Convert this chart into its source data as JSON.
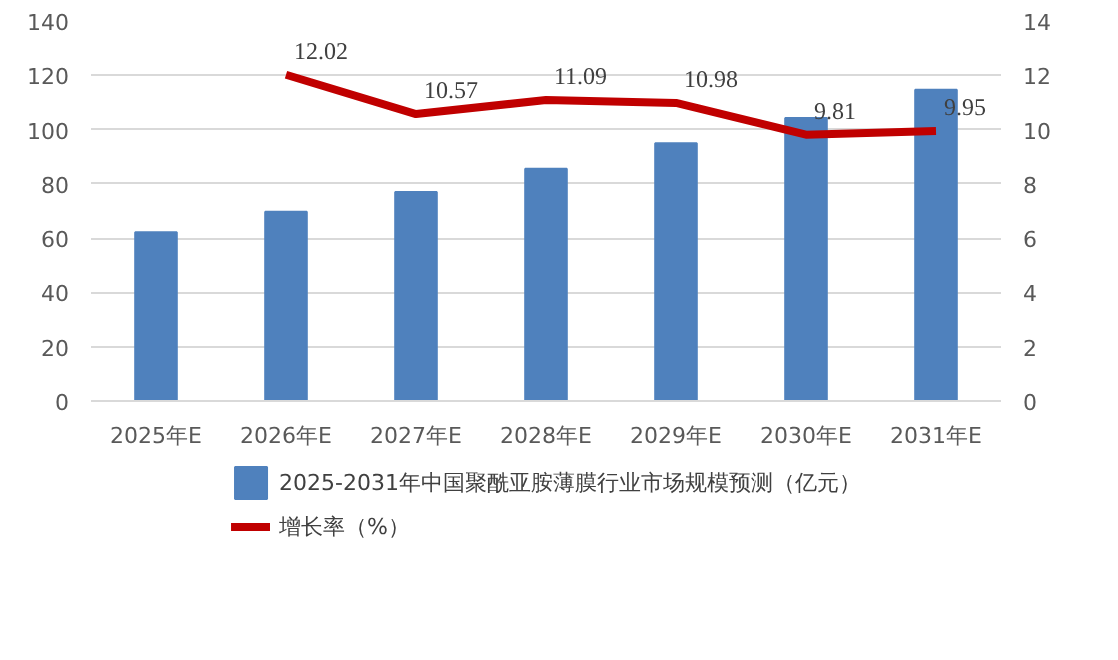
{
  "chart_data": {
    "type": "bar",
    "categories": [
      "2025年E",
      "2026年E",
      "2027年E",
      "2028年E",
      "2029年E",
      "2030年E",
      "2031年E"
    ],
    "series": [
      {
        "name": "2025-2031年中国聚酰亚胺薄膜行业市场规模预测（亿元）",
        "color": "#4f81bd",
        "values": [
          62.2,
          69.7,
          77.0,
          85.6,
          95.0,
          104.3,
          114.7
        ]
      },
      {
        "name": "增长率（%）",
        "type": "line",
        "axis": "y2",
        "color": "#c00000",
        "values": [
          null,
          12.02,
          10.57,
          11.09,
          10.98,
          9.81,
          9.95
        ],
        "value_labels": [
          null,
          "12.02",
          "10.57",
          "11.09",
          "10.98",
          "9.81",
          "9.95"
        ]
      }
    ],
    "ylim": [
      0,
      140
    ],
    "yticks": [
      0,
      20,
      40,
      60,
      80,
      100,
      120,
      140
    ],
    "y2lim": [
      0,
      14
    ],
    "y2ticks": [
      0,
      2,
      4,
      6,
      8,
      10,
      12,
      14
    ],
    "grid": "y",
    "legend": "bottom"
  }
}
